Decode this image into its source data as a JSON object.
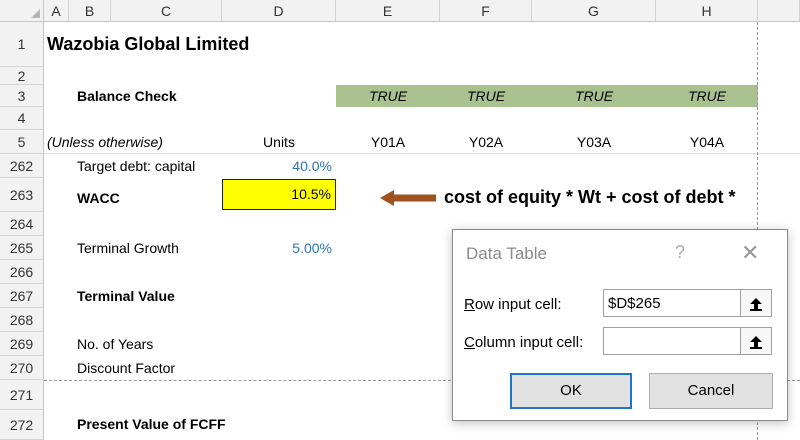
{
  "columns": [
    "A",
    "B",
    "C",
    "D",
    "E",
    "F",
    "G",
    "H"
  ],
  "rows": {
    "r1": {
      "num": "1",
      "title": "Wazobia Global Limited"
    },
    "r2": {
      "num": "2"
    },
    "r3": {
      "num": "3",
      "label": "Balance Check",
      "checks": [
        "TRUE",
        "TRUE",
        "TRUE",
        "TRUE"
      ]
    },
    "r4": {
      "num": "4"
    },
    "r5": {
      "num": "5",
      "label": "(Unless otherwise)",
      "units": "Units",
      "years": [
        "Y01A",
        "Y02A",
        "Y03A",
        "Y04A"
      ]
    },
    "r262": {
      "num": "262",
      "label": "Target debt: capital",
      "value": "40.0%"
    },
    "r263": {
      "num": "263",
      "label": "WACC",
      "value": "10.5%",
      "note": "cost of equity * Wt + cost of debt *"
    },
    "r264": {
      "num": "264"
    },
    "r265": {
      "num": "265",
      "label": "Terminal Growth",
      "value": "5.00%"
    },
    "r266": {
      "num": "266"
    },
    "r267": {
      "num": "267",
      "label": "Terminal Value"
    },
    "r268": {
      "num": "268"
    },
    "r269": {
      "num": "269",
      "label": "No. of Years"
    },
    "r270": {
      "num": "270",
      "label": "Discount Factor"
    },
    "r271": {
      "num": "271"
    },
    "r272": {
      "num": "272",
      "label": "Present Value of FCFF"
    }
  },
  "dialog": {
    "title": "Data Table",
    "help": "?",
    "close": "✕",
    "row_input_label": "Row input cell:",
    "row_input_value": "$D$265",
    "column_input_label": "Column input cell:",
    "column_input_value": "",
    "picker_glyph": "🠅",
    "ok_label": "OK",
    "cancel_label": "Cancel"
  },
  "colors": {
    "check_fill": "#a9c08f",
    "wacc_fill": "#ffff00",
    "arrow": "#a0521e",
    "value_blue": "#2e75b6"
  }
}
